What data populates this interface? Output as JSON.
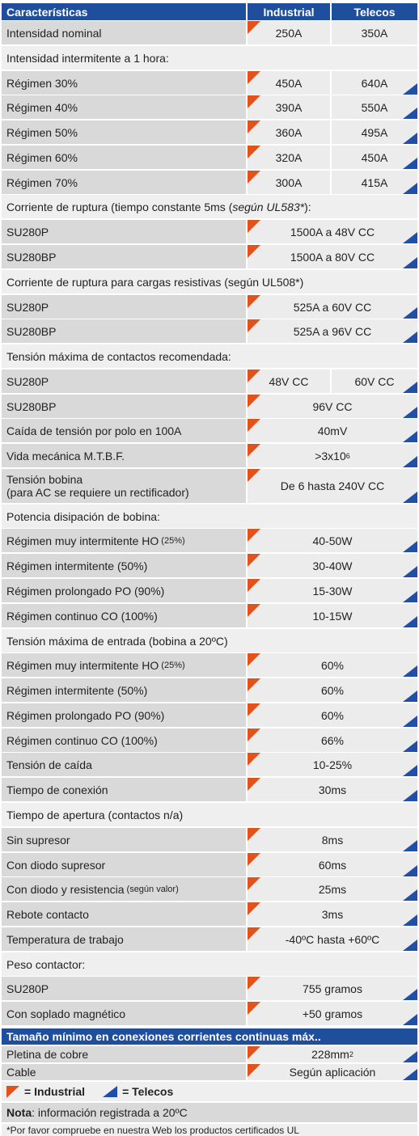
{
  "header": {
    "label": "Características",
    "industrial": "Industrial",
    "telecos": "Telecos"
  },
  "rows": [
    {
      "type": "split",
      "label": "Intensidad nominal",
      "industrial": "250A",
      "telecos": "350A"
    },
    {
      "type": "section",
      "label": "Intensidad intermitente a 1 hora:"
    },
    {
      "type": "split",
      "label": "Régimen 30%",
      "industrial": "450A",
      "telecos": "640A"
    },
    {
      "type": "split",
      "label": "Régimen 40%",
      "industrial": "390A",
      "telecos": "550A"
    },
    {
      "type": "split",
      "label": "Régimen 50%",
      "industrial": "360A",
      "telecos": "495A"
    },
    {
      "type": "split",
      "label": "Régimen 60%",
      "industrial": "320A",
      "telecos": "450A"
    },
    {
      "type": "split",
      "label": "Régimen 70%",
      "industrial": "300A",
      "telecos": "415A"
    },
    {
      "type": "section",
      "label": "Corriente de ruptura (tiempo constante 5ms (",
      "italic": "según UL583*",
      "label_end": "):"
    },
    {
      "type": "merged",
      "label": "SU280P",
      "value": "1500A a 48V CC"
    },
    {
      "type": "merged",
      "label": "SU280BP",
      "value": "1500A a 80V CC"
    },
    {
      "type": "section",
      "label": "Corriente de ruptura para cargas resistivas (según UL508*)"
    },
    {
      "type": "merged",
      "label": "SU280P",
      "value": "525A a 60V CC"
    },
    {
      "type": "merged",
      "label": "SU280BP",
      "value": "525A a 96V CC"
    },
    {
      "type": "section",
      "label": "Tensión máxima de contactos recomendada:"
    },
    {
      "type": "split",
      "label": "SU280P",
      "industrial": "48V CC",
      "telecos": "60V CC"
    },
    {
      "type": "merged",
      "label": "SU280BP",
      "value": "96V CC"
    },
    {
      "type": "merged",
      "label": "Caída de tensión por polo en 100A",
      "value": "40mV"
    },
    {
      "type": "merged",
      "label": "Vida mecánica M.T.B.F.",
      "value": ">3x10",
      "sup": "6"
    },
    {
      "type": "merged",
      "label": "Tensión bobina",
      "label2": "(para AC se requiere un rectificador)",
      "value": "De 6 hasta 240V CC"
    },
    {
      "type": "section",
      "label": "Potencia disipación de bobina:"
    },
    {
      "type": "merged",
      "label": "Régimen muy intermitente HO ",
      "note": "(25%)",
      "value": "40-50W"
    },
    {
      "type": "merged",
      "label": "Régimen intermitente (50%)",
      "value": "30-40W"
    },
    {
      "type": "merged",
      "label": "Régimen prolongado PO (90%)",
      "value": "15-30W"
    },
    {
      "type": "merged",
      "label": "Régimen continuo CO (100%)",
      "value": "10-15W"
    },
    {
      "type": "section",
      "label": "Tensión máxima de entrada (bobina a 20ºC)"
    },
    {
      "type": "merged",
      "label": "Régimen muy intermitente HO ",
      "note": "(25%)",
      "value": "60%"
    },
    {
      "type": "merged",
      "label": "Régimen intermitente (50%)",
      "value": "60%"
    },
    {
      "type": "merged",
      "label": "Régimen prolongado PO (90%)",
      "value": "60%"
    },
    {
      "type": "merged",
      "label": "Régimen continuo CO (100%)",
      "value": "66%"
    },
    {
      "type": "merged",
      "label": "Tensión de caída",
      "value": "10-25%"
    },
    {
      "type": "merged",
      "label": "Tiempo de conexión",
      "value": "30ms"
    },
    {
      "type": "section",
      "label": "Tiempo de apertura (contactos n/a)"
    },
    {
      "type": "merged",
      "label": "Sin supresor",
      "value": "8ms"
    },
    {
      "type": "merged",
      "label": "Con diodo supresor",
      "value": "60ms"
    },
    {
      "type": "merged",
      "label": "Con diodo y resistencia ",
      "note": "(según valor)",
      "value": "25ms"
    },
    {
      "type": "merged",
      "label": "Rebote contacto",
      "value": "3ms"
    },
    {
      "type": "merged",
      "label": "Temperatura de trabajo",
      "value": "-40ºC hasta +60ºC"
    },
    {
      "type": "section",
      "label": "Peso contactor:"
    },
    {
      "type": "merged",
      "label": "SU280P",
      "value": "755 gramos"
    },
    {
      "type": "merged",
      "label": "Con soplado magnético",
      "value": "+50 gramos"
    }
  ],
  "header2": "Tamaño mínimo en conexiones corrientes continuas máx..",
  "rows2": [
    {
      "type": "merged",
      "label": "Pletina de cobre",
      "value": "228mm",
      "sup": "2"
    },
    {
      "type": "merged",
      "label": "Cable",
      "value": "Según aplicación"
    }
  ],
  "legend": {
    "industrial": "= Industrial",
    "telecos": "= Telecos"
  },
  "note": {
    "bold": "Nota",
    "text": ": información registrada a 20ºC"
  },
  "footnote": {
    "mark": "*",
    "text": " Por favor compruebe en nuestra Web los productos certificados UL"
  }
}
